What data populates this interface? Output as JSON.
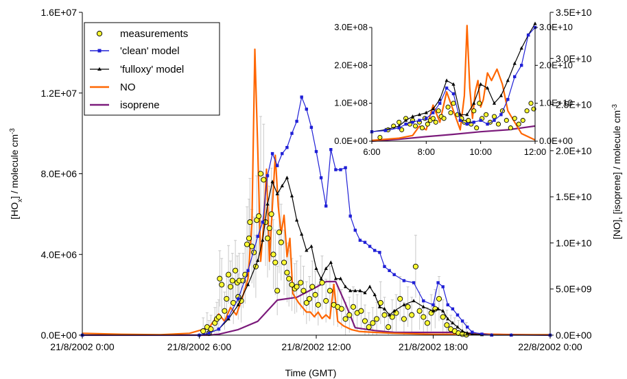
{
  "chart_data": [
    {
      "type": "line",
      "xlabel": "Time (GMT)",
      "ylabel": "[HO_x] / molecule cm^-3",
      "y2label": "[NO], [isoprene] / molecule cm^-3",
      "x_tick_labels": [
        "21/8/2002 0:00",
        "21/8/2002 6:00",
        "21/8/2002 12:00",
        "21/8/2002 18:00",
        "22/8/2002 0:00"
      ],
      "xlim_hours": [
        0,
        24
      ],
      "ylim": [
        0,
        16000000
      ],
      "y_tick_labels": [
        "0.0E+00",
        "4.0E+06",
        "8.0E+06",
        "1.2E+07",
        "1.6E+07"
      ],
      "y_tick_values": [
        0,
        4000000,
        8000000,
        12000000,
        16000000
      ],
      "y2lim": [
        0,
        35000000000
      ],
      "y2_tick_labels": [
        "0.0E+00",
        "5.0E+09",
        "1.0E+10",
        "1.5E+10",
        "2.0E+10",
        "2.5E+10",
        "3.0E+10",
        "3.5E+10"
      ],
      "y2_tick_values": [
        0,
        5000000000,
        10000000000,
        15000000000,
        20000000000,
        25000000000,
        30000000000,
        35000000000
      ],
      "legend": {
        "position": "top-left",
        "entries": [
          "measurements",
          "'clean' model",
          "'fulloxy' model",
          "NO",
          "isoprene"
        ]
      },
      "colors": {
        "measurements_fill": "#ffff33",
        "measurements_edge": "#000000",
        "error_bars": "#c8c8c8",
        "clean_model": "#1f1fd6",
        "fulloxy_model": "#000000",
        "NO": "#ff6600",
        "isoprene": "#7b1a7b"
      },
      "series": [
        {
          "name": "'clean' model",
          "axis": "left",
          "x": [
            0,
            6,
            6.5,
            7,
            7.5,
            8,
            8.5,
            9,
            9.25,
            9.5,
            9.75,
            10,
            10.25,
            10.5,
            10.75,
            11,
            11.25,
            11.5,
            11.75,
            12,
            12.25,
            12.5,
            12.75,
            13,
            13.25,
            13.5,
            13.75,
            14,
            14.25,
            14.5,
            14.75,
            15,
            15.25,
            15.5,
            15.75,
            16,
            16.5,
            17,
            17.5,
            18,
            18.25,
            18.5,
            18.75,
            19,
            19.25,
            19.5,
            19.75,
            20,
            20.5,
            21,
            22,
            24
          ],
          "y": [
            0,
            0,
            100000,
            300000,
            900000,
            1800000,
            3200000,
            4900000,
            5600000,
            7900000,
            9000000,
            8400000,
            9000000,
            9300000,
            10000000,
            10600000,
            11800000,
            11200000,
            10300000,
            9100000,
            7800000,
            6400000,
            9200000,
            8200000,
            8200000,
            8300000,
            5900000,
            5200000,
            4700000,
            4600000,
            4400000,
            4200000,
            4100000,
            3400000,
            3200000,
            3000000,
            2700000,
            2600000,
            1700000,
            1500000,
            2600000,
            2400000,
            1500000,
            1300000,
            1000000,
            700000,
            400000,
            150000,
            50000,
            0,
            0,
            0
          ]
        },
        {
          "name": "'fulloxy' model",
          "axis": "left",
          "x": [
            0,
            6,
            6.5,
            7,
            7.5,
            8,
            8.5,
            9,
            9.25,
            9.5,
            9.75,
            10,
            10.25,
            10.5,
            10.75,
            11,
            11.25,
            11.5,
            11.75,
            12,
            12.25,
            12.5,
            12.75,
            13,
            13.25,
            13.5,
            13.75,
            14,
            14.25,
            14.5,
            14.75,
            15,
            15.25,
            15.5,
            15.75,
            16,
            16.5,
            17,
            17.5,
            18,
            18.25,
            18.5,
            18.75,
            19,
            19.25,
            19.5,
            19.75,
            20,
            20.5,
            21,
            22,
            24
          ],
          "y": [
            0,
            0,
            100000,
            300000,
            800000,
            1500000,
            2500000,
            3700000,
            4700000,
            6500000,
            7600000,
            7000000,
            7400000,
            7800000,
            6900000,
            5700000,
            5000000,
            4200000,
            4400000,
            3300000,
            2800000,
            3300000,
            3600000,
            2800000,
            2800000,
            2400000,
            2200000,
            2200000,
            2200000,
            2100000,
            2400000,
            2000000,
            1400000,
            1300000,
            1000000,
            1200000,
            1500000,
            1700000,
            1400000,
            1200000,
            1300000,
            1200000,
            800000,
            600000,
            400000,
            200000,
            100000,
            50000,
            20000,
            0,
            0,
            0
          ]
        },
        {
          "name": "NO",
          "axis": "right",
          "x": [
            0,
            2,
            4,
            5.5,
            6.5,
            7,
            7.3,
            7.6,
            7.9,
            8.2,
            8.5,
            8.7,
            8.85,
            9,
            9.15,
            9.3,
            9.45,
            9.6,
            9.75,
            9.9,
            10.05,
            10.2,
            10.35,
            10.5,
            10.65,
            10.8,
            10.95,
            11.1,
            11.3,
            11.5,
            11.7,
            11.9,
            12.1,
            12.3,
            12.5,
            12.7,
            12.9,
            13.1,
            13.4,
            13.8,
            14.2,
            15,
            16,
            17,
            18,
            18.5,
            19,
            19.5,
            20,
            21,
            22,
            23,
            24
          ],
          "y": [
            200000000,
            100000000,
            50000000,
            200000000,
            800000000,
            2300000000,
            1500000000,
            3000000000,
            2200000000,
            4000000000,
            6100000000,
            12000000000,
            31000000000,
            20000000000,
            8000000000,
            12000000000,
            18000000000,
            8000000000,
            14000000000,
            19500000000,
            14000000000,
            11000000000,
            13000000000,
            8500000000,
            10500000000,
            4500000000,
            4000000000,
            3500000000,
            3000000000,
            2500000000,
            2500000000,
            2000000000,
            2500000000,
            1800000000,
            2200000000,
            1800000000,
            5500000000,
            1500000000,
            1000000000,
            600000000,
            400000000,
            300000000,
            200000000,
            150000000,
            100000000,
            100000000,
            100000000,
            200000000,
            100000000,
            100000000,
            50000000,
            50000000,
            50000000
          ]
        },
        {
          "name": "isoprene",
          "axis": "right",
          "x": [
            0,
            6.5,
            7,
            8,
            9,
            10,
            11,
            12,
            12.5,
            13,
            13.5,
            14,
            15,
            16,
            17,
            18,
            19,
            20,
            21,
            24
          ],
          "y": [
            0,
            0,
            100000000,
            600000000,
            1500000000,
            3800000000,
            4100000000,
            5200000000,
            5800000000,
            5800000000,
            3400000000,
            800000000,
            500000000,
            300000000,
            300000000,
            300000000,
            300000000,
            200000000,
            100000000,
            0
          ]
        },
        {
          "name": "measurements",
          "axis": "left",
          "kind": "scatter_with_error_bars",
          "x": [
            6.2,
            6.4,
            6.5,
            6.6,
            6.8,
            6.9,
            7.0,
            7.05,
            7.15,
            7.3,
            7.4,
            7.5,
            7.6,
            7.7,
            7.75,
            7.85,
            7.95,
            8.0,
            8.05,
            8.15,
            8.25,
            8.35,
            8.45,
            8.55,
            8.6,
            8.7,
            8.8,
            8.9,
            8.95,
            9.05,
            9.15,
            9.3,
            9.4,
            9.5,
            9.6,
            9.7,
            9.8,
            9.9,
            10.0,
            10.1,
            10.2,
            10.35,
            10.5,
            10.6,
            10.75,
            10.9,
            11.0,
            11.2,
            11.35,
            11.5,
            11.65,
            11.8,
            11.95,
            12.1,
            12.3,
            12.5,
            12.7,
            12.9,
            13.1,
            13.3,
            13.5,
            13.7,
            13.9,
            14.1,
            14.3,
            14.5,
            14.7,
            14.9,
            15.1,
            15.3,
            15.5,
            15.7,
            15.9,
            16.1,
            16.3,
            16.5,
            16.7,
            16.9,
            17.1,
            17.3,
            17.5,
            17.7,
            17.9,
            18.1,
            18.3,
            18.5,
            18.7,
            18.9,
            19.1,
            19.3,
            19.5,
            19.7
          ],
          "y": [
            200000,
            400000,
            100000,
            300000,
            600000,
            800000,
            900000,
            2800000,
            2500000,
            1200000,
            1800000,
            3000000,
            2400000,
            2700000,
            1600000,
            3200000,
            2600000,
            1900000,
            2700000,
            1700000,
            2700000,
            3000000,
            4500000,
            4800000,
            5600000,
            4400000,
            4100000,
            3400000,
            5700000,
            5900000,
            8000000,
            7700000,
            5600000,
            4800000,
            5300000,
            6000000,
            4000000,
            3600000,
            2200000,
            5100000,
            4600000,
            3600000,
            3100000,
            2800000,
            2500000,
            2300000,
            2400000,
            2600000,
            2200000,
            1600000,
            1800000,
            2400000,
            2000000,
            1500000,
            2600000,
            1700000,
            2200000,
            1500000,
            1400000,
            1300000,
            800000,
            1000000,
            1400000,
            1100000,
            1200000,
            700000,
            400000,
            600000,
            800000,
            1600000,
            1000000,
            400000,
            900000,
            1100000,
            1800000,
            800000,
            1400000,
            1000000,
            3400000,
            1200000,
            900000,
            600000,
            1100000,
            1300000,
            1800000,
            900000,
            500000,
            300000,
            200000,
            100000,
            50000,
            20000
          ]
        }
      ]
    },
    {
      "type": "line",
      "inset": true,
      "x_tick_labels": [
        "6:00",
        "8:00",
        "10:00",
        "12:00"
      ],
      "xlim_hours": [
        6,
        12
      ],
      "ylim": [
        0,
        300000000
      ],
      "y_tick_labels": [
        "0.0E+00",
        "1.0E+08",
        "2.0E+08",
        "3.0E+08"
      ],
      "y_tick_values": [
        0,
        100000000,
        200000000,
        300000000
      ],
      "y2lim": [
        0,
        30000000000
      ],
      "y2_tick_labels": [
        "0.0E+00",
        "1.0E+10",
        "2.0E+10",
        "3.0E+10"
      ],
      "y2_tick_values": [
        0,
        10000000000,
        20000000000,
        30000000000
      ],
      "series": [
        {
          "name": "'clean' model",
          "axis": "left",
          "x": [
            6,
            6.5,
            7,
            7.25,
            7.5,
            7.75,
            8,
            8.25,
            8.5,
            8.75,
            9,
            9.25,
            9.5,
            9.75,
            10,
            10.25,
            10.5,
            10.75,
            11,
            11.25,
            11.5,
            11.75,
            12
          ],
          "y": [
            25000000,
            28000000,
            35000000,
            45000000,
            50000000,
            55000000,
            60000000,
            75000000,
            100000000,
            140000000,
            125000000,
            55000000,
            45000000,
            50000000,
            55000000,
            45000000,
            55000000,
            70000000,
            110000000,
            170000000,
            200000000,
            280000000,
            300000000
          ]
        },
        {
          "name": "'fulloxy' model",
          "axis": "left",
          "x": [
            6,
            6.5,
            7,
            7.25,
            7.5,
            7.75,
            8,
            8.25,
            8.5,
            8.75,
            9,
            9.25,
            9.5,
            9.75,
            10,
            10.25,
            10.5,
            10.75,
            11,
            11.25,
            11.5,
            11.75,
            12
          ],
          "y": [
            25000000,
            30000000,
            40000000,
            55000000,
            65000000,
            70000000,
            75000000,
            85000000,
            110000000,
            160000000,
            150000000,
            70000000,
            70000000,
            100000000,
            150000000,
            140000000,
            100000000,
            120000000,
            160000000,
            205000000,
            245000000,
            280000000,
            310000000
          ]
        },
        {
          "name": "NO",
          "axis": "right",
          "x": [
            6,
            6.5,
            7,
            7.5,
            7.75,
            8,
            8.25,
            8.5,
            8.75,
            9,
            9.25,
            9.4,
            9.5,
            9.6,
            9.7,
            9.8,
            9.9,
            10,
            10.1,
            10.25,
            10.4,
            10.6,
            10.8,
            11,
            11.5,
            12
          ],
          "y": [
            200000000,
            500000000,
            800000000,
            1500000000,
            4000000000,
            3000000000,
            9500000000,
            5000000000,
            13000000000,
            8000000000,
            3000000000,
            12000000000,
            30500000000,
            14000000000,
            6000000000,
            13000000000,
            16000000000,
            9000000000,
            11000000000,
            18000000000,
            16000000000,
            19000000000,
            15000000000,
            8000000000,
            2000000000,
            300000000
          ]
        },
        {
          "name": "isoprene",
          "axis": "right",
          "x": [
            6,
            7,
            8,
            9,
            10,
            11,
            12
          ],
          "y": [
            0,
            500000000,
            1200000000,
            1800000000,
            2500000000,
            3000000000,
            4000000000
          ]
        },
        {
          "name": "measurements",
          "axis": "left",
          "kind": "scatter",
          "x": [
            6.3,
            6.6,
            6.8,
            7.0,
            7.1,
            7.25,
            7.4,
            7.5,
            7.6,
            7.75,
            7.85,
            7.95,
            8.05,
            8.15,
            8.25,
            8.35,
            8.45,
            8.55,
            8.65,
            8.8,
            8.9,
            9.0,
            9.15,
            9.3,
            9.4,
            9.55,
            9.65,
            9.75,
            9.85,
            9.95,
            10.05,
            10.2,
            10.35,
            10.5,
            10.65,
            10.8,
            10.95,
            11.1,
            11.25,
            11.4,
            11.55,
            11.7,
            11.85,
            11.95
          ],
          "y": [
            10000000,
            30000000,
            40000000,
            50000000,
            30000000,
            60000000,
            45000000,
            55000000,
            40000000,
            50000000,
            35000000,
            60000000,
            45000000,
            55000000,
            60000000,
            50000000,
            80000000,
            65000000,
            60000000,
            90000000,
            75000000,
            100000000,
            70000000,
            60000000,
            50000000,
            55000000,
            45000000,
            80000000,
            35000000,
            100000000,
            60000000,
            70000000,
            50000000,
            65000000,
            45000000,
            80000000,
            55000000,
            35000000,
            60000000,
            45000000,
            55000000,
            80000000,
            100000000,
            85000000
          ]
        }
      ]
    }
  ]
}
